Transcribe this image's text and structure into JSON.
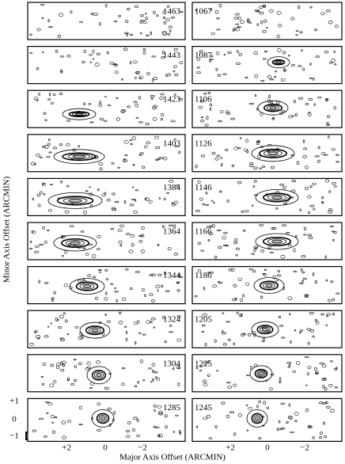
{
  "panels_left": [
    "1463",
    "1443",
    "1423",
    "1403",
    "1384",
    "1364",
    "1344",
    "1324",
    "1304",
    "1285"
  ],
  "panels_right": [
    "1067",
    "1087",
    "1106",
    "1126",
    "1146",
    "1166",
    "1186",
    "1205",
    "1225",
    "1245"
  ],
  "x_ticks_left": [
    "+2",
    "0",
    "−2"
  ],
  "x_ticks_right": [
    "+2",
    "0",
    "−2"
  ],
  "y_ticks": [
    "+1",
    "0",
    "−1"
  ],
  "x_label": "Major Axis Offset (ARCMIN)",
  "y_label": "Minor Axis Offset (ARCMIN)"
}
